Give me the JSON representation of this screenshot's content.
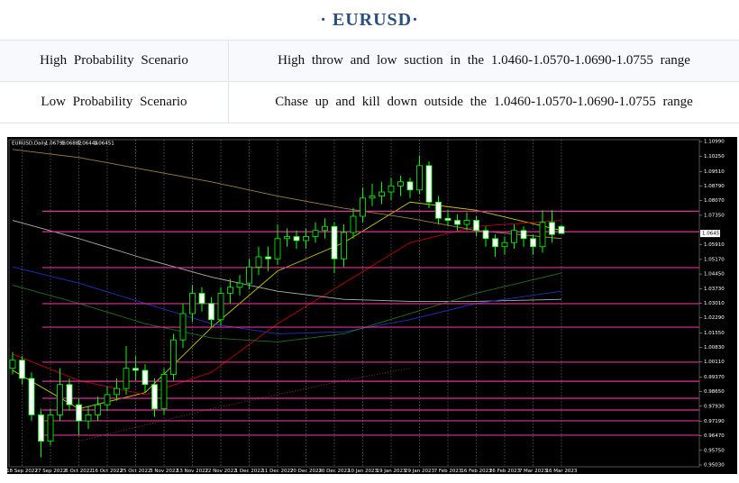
{
  "header": {
    "title": "· EURUSD·"
  },
  "table": {
    "rows": [
      [
        "High Probability Scenario",
        "High throw and low suction in the 1.0460-1.0570-1.0690-1.0755 range"
      ],
      [
        "Low Probability Scenario",
        "Chase up and kill down outside the 1.0460-1.0570-1.0690-1.0755 range"
      ]
    ]
  },
  "chart_data": {
    "type": "candlestick",
    "title": "EURUSD,Daily",
    "categories": [
      null,
      "18 Sep 2022",
      null,
      null,
      "27 Sep 2022",
      null,
      null,
      "6 Oct 2022",
      null,
      null,
      "16 Oct 2022",
      null,
      null,
      "25 Oct 2022",
      null,
      null,
      "3 Nov 2022",
      null,
      null,
      "13 Nov 2022",
      null,
      null,
      "22 Nov 2022",
      null,
      null,
      "1 Dec 2022",
      null,
      null,
      "11 Dec 2022",
      null,
      null,
      "20 Dec 2022",
      null,
      null,
      "30 Dec 2022",
      null,
      null,
      "10 Jan 2023",
      null,
      null,
      "19 Jan 2023",
      null,
      null,
      "29 Jan 2023",
      null,
      null,
      "7 Feb 2023",
      null,
      null,
      "16 Feb 2023",
      null,
      null,
      "26 Feb 2023",
      null,
      null,
      "7 Mar 2023",
      null,
      null,
      "16 Mar 2023"
    ],
    "candles": [
      [
        0.998,
        1.006,
        0.995,
        1.002
      ],
      [
        1.002,
        1.004,
        0.99,
        0.993
      ],
      [
        0.993,
        0.996,
        0.972,
        0.975
      ],
      [
        0.975,
        0.978,
        0.954,
        0.962
      ],
      [
        0.962,
        0.978,
        0.96,
        0.975
      ],
      [
        0.975,
        0.998,
        0.972,
        0.99
      ],
      [
        0.99,
        0.993,
        0.977,
        0.98
      ],
      [
        0.98,
        0.983,
        0.965,
        0.972
      ],
      [
        0.972,
        0.979,
        0.968,
        0.975
      ],
      [
        0.975,
        0.984,
        0.972,
        0.98
      ],
      [
        0.98,
        0.989,
        0.977,
        0.985
      ],
      [
        0.985,
        0.993,
        0.982,
        0.988
      ],
      [
        0.988,
        1.009,
        0.985,
        0.998
      ],
      [
        0.998,
        1.004,
        0.992,
        0.997
      ],
      [
        0.997,
        1.0,
        0.986,
        0.99
      ],
      [
        0.99,
        0.993,
        0.974,
        0.978
      ],
      [
        0.978,
        0.998,
        0.975,
        0.995
      ],
      [
        0.995,
        1.015,
        0.992,
        1.012
      ],
      [
        1.012,
        1.03,
        1.008,
        1.025
      ],
      [
        1.025,
        1.039,
        1.021,
        1.035
      ],
      [
        1.035,
        1.038,
        1.026,
        1.03
      ],
      [
        1.03,
        1.033,
        1.018,
        1.022
      ],
      [
        1.022,
        1.038,
        1.019,
        1.035
      ],
      [
        1.035,
        1.042,
        1.03,
        1.038
      ],
      [
        1.038,
        1.044,
        1.034,
        1.04
      ],
      [
        1.04,
        1.052,
        1.037,
        1.048
      ],
      [
        1.048,
        1.058,
        1.044,
        1.053
      ],
      [
        1.053,
        1.058,
        1.046,
        1.052
      ],
      [
        1.052,
        1.069,
        1.049,
        1.062
      ],
      [
        1.062,
        1.067,
        1.058,
        1.063
      ],
      [
        1.063,
        1.066,
        1.057,
        1.061
      ],
      [
        1.061,
        1.067,
        1.057,
        1.063
      ],
      [
        1.063,
        1.07,
        1.06,
        1.066
      ],
      [
        1.066,
        1.072,
        1.062,
        1.068
      ],
      [
        1.068,
        1.07,
        1.045,
        1.052
      ],
      [
        1.052,
        1.069,
        1.048,
        1.065
      ],
      [
        1.065,
        1.077,
        1.062,
        1.073
      ],
      [
        1.073,
        1.087,
        1.07,
        1.082
      ],
      [
        1.082,
        1.089,
        1.078,
        1.083
      ],
      [
        1.083,
        1.09,
        1.079,
        1.085
      ],
      [
        1.085,
        1.092,
        1.081,
        1.088
      ],
      [
        1.088,
        1.093,
        1.083,
        1.09
      ],
      [
        1.09,
        1.092,
        1.082,
        1.086
      ],
      [
        1.086,
        1.103,
        1.084,
        1.098
      ],
      [
        1.098,
        1.1,
        1.077,
        1.08
      ],
      [
        1.08,
        1.083,
        1.069,
        1.072
      ],
      [
        1.072,
        1.076,
        1.068,
        1.071
      ],
      [
        1.071,
        1.074,
        1.066,
        1.069
      ],
      [
        1.069,
        1.075,
        1.066,
        1.071
      ],
      [
        1.071,
        1.073,
        1.063,
        1.066
      ],
      [
        1.066,
        1.068,
        1.058,
        1.062
      ],
      [
        1.062,
        1.064,
        1.053,
        1.058
      ],
      [
        1.058,
        1.063,
        1.054,
        1.06
      ],
      [
        1.06,
        1.069,
        1.057,
        1.066
      ],
      [
        1.066,
        1.068,
        1.058,
        1.062
      ],
      [
        1.062,
        1.064,
        1.054,
        1.058
      ],
      [
        1.058,
        1.076,
        1.055,
        1.07
      ],
      [
        1.07,
        1.076,
        1.06,
        1.064
      ],
      [
        1.06798,
        1.06882,
        1.06444,
        1.06451
      ]
    ],
    "up_color": "#00ff00",
    "indicator_x": [
      0,
      7,
      14,
      21,
      28,
      35,
      42,
      49,
      58
    ],
    "indicators": [
      {
        "color": "#c8c800",
        "values": [
          0.997,
          0.978,
          0.986,
          1.018,
          1.046,
          1.06,
          1.08,
          1.076,
          1.066
        ]
      },
      {
        "color": "#c00000",
        "values": [
          1.005,
          0.992,
          0.985,
          0.996,
          1.02,
          1.04,
          1.06,
          1.068,
          1.071
        ]
      },
      {
        "color": "#a08040",
        "values": [
          1.106,
          1.102,
          1.096,
          1.09,
          1.083,
          1.077,
          1.072,
          1.066,
          1.062
        ]
      },
      {
        "color": "#b0b0b0",
        "values": [
          1.071,
          1.062,
          1.052,
          1.043,
          1.036,
          1.032,
          1.031,
          1.031,
          1.032
        ]
      },
      {
        "color": "#2030c0",
        "values": [
          1.048,
          1.04,
          1.03,
          1.02,
          1.015,
          1.016,
          1.022,
          1.03,
          1.036
        ]
      },
      {
        "color": "#207020",
        "values": [
          1.039,
          1.03,
          1.02,
          1.013,
          1.011,
          1.015,
          1.025,
          1.035,
          1.045
        ]
      },
      {
        "color": "#a03030",
        "dash": true,
        "values": [
          null,
          0.962,
          0.97,
          0.978,
          0.985,
          0.992,
          0.998,
          null,
          null
        ]
      }
    ],
    "levels": [
      1.0755,
      1.0654,
      1.0477,
      1.0299,
      1.0183,
      1.001,
      0.9916,
      0.9832,
      0.9774,
      0.9721,
      0.965
    ],
    "level_color": "#e0309a",
    "ylim": [
      0.9494,
      1.1108
    ],
    "yticks": [
      {
        "value": 1.1099,
        "label": "1.10990"
      },
      {
        "value": 1.1025,
        "label": "1.10250"
      },
      {
        "value": 1.0951,
        "label": "1.09510"
      },
      {
        "value": 1.0879,
        "label": "1.08790"
      },
      {
        "value": 1.0807,
        "label": "1.08070"
      },
      {
        "value": 1.0735,
        "label": "1.07350"
      },
      {
        "value": 1.0591,
        "label": "1.05910"
      },
      {
        "value": 1.0517,
        "label": "1.05170"
      },
      {
        "value": 1.0445,
        "label": "1.04450"
      },
      {
        "value": 1.0373,
        "label": "1.03730"
      },
      {
        "value": 1.0301,
        "label": "1.03010"
      },
      {
        "value": 1.0229,
        "label": "1.02290"
      },
      {
        "value": 1.0155,
        "label": "1.01550"
      },
      {
        "value": 1.0083,
        "label": "1.00830"
      },
      {
        "value": 1.0011,
        "label": "1.00110"
      },
      {
        "value": 0.9937,
        "label": "0.99370"
      },
      {
        "value": 0.9865,
        "label": "0.98650"
      },
      {
        "value": 0.9793,
        "label": "0.97930"
      },
      {
        "value": 0.9719,
        "label": "0.97190"
      },
      {
        "value": 0.9647,
        "label": "0.96470"
      },
      {
        "value": 0.9575,
        "label": "0.95750"
      },
      {
        "value": 0.9503,
        "label": "0.95030"
      }
    ],
    "grid": true
  }
}
